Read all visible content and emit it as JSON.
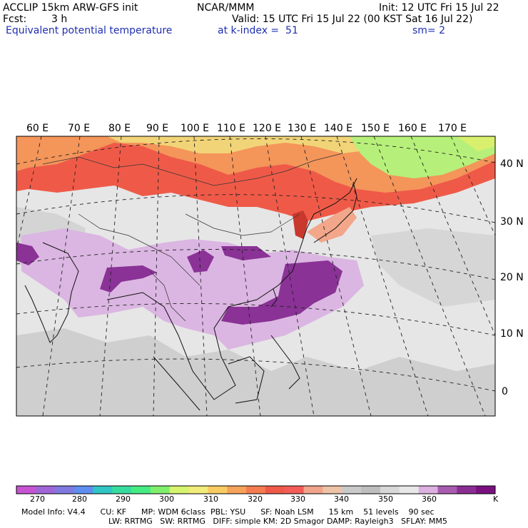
{
  "header": {
    "model": "ACCLIP 15km ARW-GFS init",
    "org": "NCAR/MMM",
    "init": "Init: 12 UTC Fri 15 Jul 22",
    "fcst_label": "Fcst:",
    "fcst_value": "3 h",
    "valid": "Valid: 15 UTC Fri 15 Jul 22 (00 KST Sat 16 Jul 22)",
    "field": "Equivalent potential temperature",
    "level": "at k-index =  51",
    "smooth": "sm= 2"
  },
  "map": {
    "lon_labels": [
      "60 E",
      "70 E",
      "80 E",
      "90 E",
      "100 E",
      "110 E",
      "120 E",
      "130 E",
      "140 E",
      "150 E",
      "160 E",
      "170 E"
    ],
    "lat_labels": [
      "40 N",
      "30 N",
      "20 N",
      "10 N",
      "0"
    ]
  },
  "colorbar": {
    "colors": [
      "#c654d2",
      "#a066d8",
      "#7f79e0",
      "#5f8ef0",
      "#31c5c5",
      "#36dc9e",
      "#44ec82",
      "#80f06c",
      "#d6f46e",
      "#f2ec7a",
      "#f8cc62",
      "#f6a25a",
      "#f47c50",
      "#ef5a48",
      "#f45c58",
      "#f0a48a",
      "#eec4a8",
      "#cacaca",
      "#bebebe",
      "#d8d8d8",
      "#e8e8e8",
      "#dcb0e0",
      "#a85cb0",
      "#8a2d92",
      "#7a1080"
    ],
    "labels": [
      "270",
      "280",
      "290",
      "300",
      "310",
      "320",
      "330",
      "340",
      "350",
      "360"
    ],
    "unit": "K"
  },
  "footer": {
    "line1": "Model Info: V4.4      CU: KF      MP: WDM 6class  PBL: YSU      SF: Noah LSM      15 km    51 levels    90 sec",
    "line2": "LW: RRTMG   SW: RRTMG   DIFF: simple KM: 2D Smagor DAMP: Rayleigh3   SFLAY: MM5"
  },
  "colors": {
    "purple_dark": "#7b2d8f",
    "purple_light": "#d9b3e0",
    "grey_light": "#d0d0d0",
    "red": "#f05a48",
    "orange": "#f49a52",
    "yellow": "#f2e47a",
    "green": "#a6f07a"
  }
}
